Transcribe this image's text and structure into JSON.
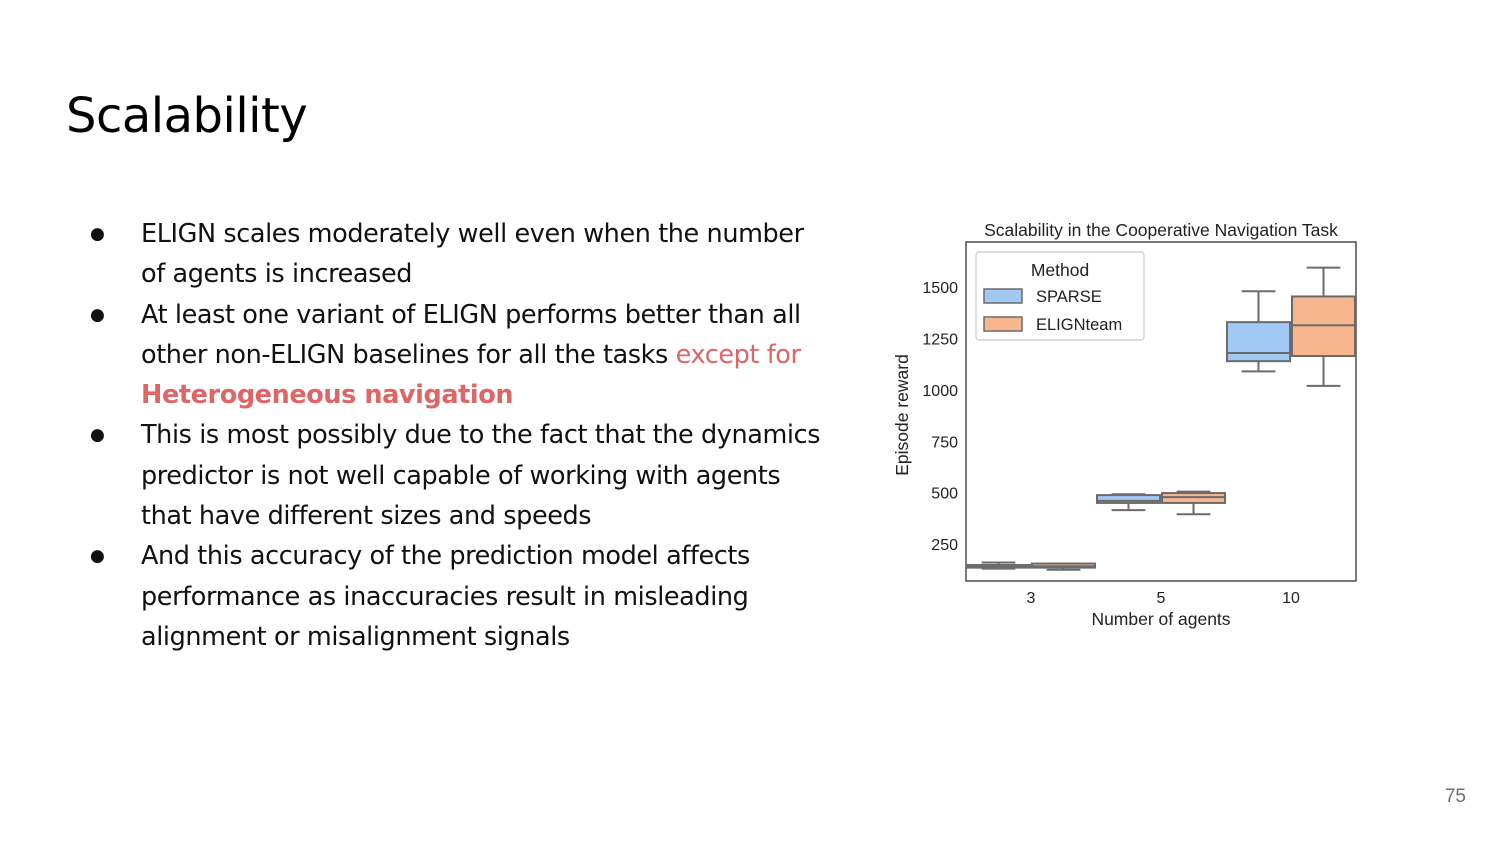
{
  "slide": {
    "title": "Scalability",
    "page_number": "75",
    "bullets": [
      {
        "parts": [
          {
            "text": "ELIGN scales moderately well even when the number of agents is increased",
            "style": "normal"
          }
        ]
      },
      {
        "parts": [
          {
            "text": "At least one variant of ELIGN performs better than all other non-ELIGN baselines for all the tasks ",
            "style": "normal"
          },
          {
            "text": "except for ",
            "style": "highlight"
          },
          {
            "text": "Heterogeneous navigation",
            "style": "highlight-strong"
          }
        ]
      },
      {
        "parts": [
          {
            "text": "This is most possibly due to the fact that the dynamics predictor is not well capable of working with agents that have different sizes and speeds",
            "style": "normal"
          }
        ]
      },
      {
        "parts": [
          {
            "text": "And this accuracy of the prediction model affects performance as inaccuracies result in misleading alignment or misalignment signals",
            "style": "normal"
          }
        ]
      }
    ],
    "highlight_color": "#e06666"
  },
  "chart_data": {
    "type": "box",
    "title": "Scalability in the Cooperative Navigation Task",
    "xlabel": "Number of agents",
    "ylabel": "Episode reward",
    "categories": [
      "3",
      "5",
      "10"
    ],
    "yticks": [
      250,
      500,
      750,
      1000,
      1250,
      1500
    ],
    "ylim": [
      70,
      1720
    ],
    "grid": false,
    "legend": {
      "title": "Method",
      "placement": "top-left"
    },
    "series": [
      {
        "name": "SPARSE",
        "color": "#a1c9f4",
        "boxes": [
          {
            "whisker_low": 130,
            "q1": 135,
            "median": 140,
            "q3": 148,
            "whisker_high": 160
          },
          {
            "whisker_low": 415,
            "q1": 450,
            "median": 460,
            "q3": 488,
            "whisker_high": 492
          },
          {
            "whisker_low": 1090,
            "q1": 1140,
            "median": 1180,
            "q3": 1330,
            "whisker_high": 1480
          }
        ]
      },
      {
        "name": "ELIGNteam",
        "color": "#f7b68e",
        "boxes": [
          {
            "whisker_low": 125,
            "q1": 135,
            "median": 142,
            "q3": 155,
            "whisker_high": 155
          },
          {
            "whisker_low": 395,
            "q1": 450,
            "median": 478,
            "q3": 498,
            "whisker_high": 505
          },
          {
            "whisker_low": 1020,
            "q1": 1165,
            "median": 1315,
            "q3": 1455,
            "whisker_high": 1595
          }
        ]
      }
    ]
  }
}
